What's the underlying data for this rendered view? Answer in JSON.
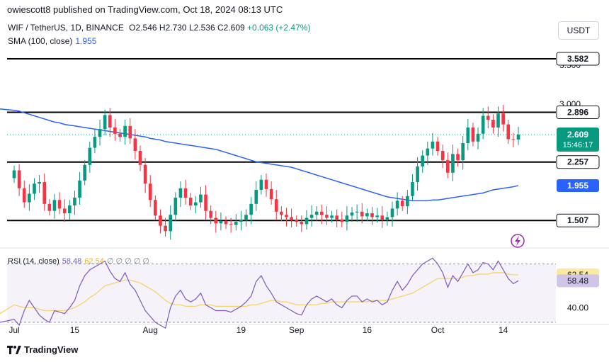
{
  "header": {
    "published": "owiescott8 published on TradingView.com, Oct 18, 2024 08:13 UTC",
    "symbol": "WIF / TetherUS, 1D, BINANCE",
    "open_label": "O",
    "open": "2.546",
    "high_label": "H",
    "high": "2.730",
    "low_label": "L",
    "low": "2.536",
    "close_label": "C",
    "close": "2.609",
    "change": "+0.063 (+2.47%)",
    "sma_label": "SMA (100, close)",
    "sma_value": "1.955",
    "currency": "USDT"
  },
  "rsi": {
    "label": "RSI (14, close)",
    "value": "58.48",
    "ma_value": "62.54",
    "extras": "∅ ∅ ∅ ∅ ∅",
    "axis_label": "40.00"
  },
  "footer": {
    "brand": "TradingView"
  },
  "icons": {
    "logo": "tradingview-logo-icon",
    "flash": "lightning-icon"
  },
  "colors": {
    "up": "#089981",
    "down": "#f23645",
    "sma": "#2962ff",
    "rsi": "#7e57c2",
    "rsi_ma": "#f5d36b",
    "level": "#000000"
  },
  "chart_data": {
    "type": "candlestick",
    "title": "WIF / TetherUS, 1D, BINANCE",
    "price_range": [
      1.2,
      3.7
    ],
    "x_ticks": [
      {
        "label": "Jul",
        "index": 0
      },
      {
        "label": "15",
        "index": 12
      },
      {
        "label": "Aug",
        "index": 27
      },
      {
        "label": "19",
        "index": 45
      },
      {
        "label": "Sep",
        "index": 56
      },
      {
        "label": "16",
        "index": 70
      },
      {
        "label": "Oct",
        "index": 84
      },
      {
        "label": "14",
        "index": 97
      }
    ],
    "y_ticks_faded": [
      "3.500",
      "3.000"
    ],
    "levels": [
      {
        "value": 3.582,
        "label": "3.582"
      },
      {
        "value": 2.896,
        "label": "2.896"
      },
      {
        "value": 2.257,
        "label": "2.257"
      },
      {
        "value": 1.507,
        "label": "1.507"
      }
    ],
    "current_price": {
      "value": 2.609,
      "label": "2.609",
      "countdown": "15:46:17"
    },
    "sma_label": {
      "value": 1.955,
      "label": "1.955"
    },
    "closes": [
      2.15,
      1.92,
      1.74,
      1.85,
      1.98,
      2.0,
      1.72,
      1.63,
      1.77,
      1.66,
      1.6,
      1.7,
      1.8,
      2.02,
      2.22,
      2.44,
      2.58,
      2.68,
      2.86,
      2.7,
      2.62,
      2.58,
      2.72,
      2.56,
      2.4,
      2.22,
      1.98,
      1.77,
      1.57,
      1.44,
      1.37,
      1.58,
      1.8,
      1.92,
      1.8,
      1.7,
      1.74,
      1.84,
      1.63,
      1.54,
      1.47,
      1.5,
      1.46,
      1.45,
      1.49,
      1.51,
      1.58,
      1.72,
      1.9,
      2.03,
      1.91,
      1.78,
      1.62,
      1.58,
      1.55,
      1.51,
      1.49,
      1.46,
      1.54,
      1.58,
      1.62,
      1.58,
      1.54,
      1.57,
      1.52,
      1.49,
      1.57,
      1.61,
      1.62,
      1.56,
      1.6,
      1.55,
      1.57,
      1.52,
      1.55,
      1.66,
      1.76,
      1.69,
      1.82,
      2.0,
      2.2,
      2.34,
      2.43,
      2.52,
      2.4,
      2.28,
      2.12,
      2.36,
      2.28,
      2.5,
      2.7,
      2.52,
      2.62,
      2.85,
      2.8,
      2.7,
      2.88,
      2.74,
      2.55,
      2.546,
      2.609
    ],
    "opens": [
      2.05,
      2.15,
      1.92,
      1.74,
      1.85,
      1.98,
      2.0,
      1.72,
      1.63,
      1.77,
      1.66,
      1.6,
      1.7,
      1.8,
      2.02,
      2.22,
      2.44,
      2.58,
      2.68,
      2.86,
      2.7,
      2.62,
      2.58,
      2.72,
      2.56,
      2.4,
      2.22,
      1.98,
      1.77,
      1.57,
      1.44,
      1.37,
      1.58,
      1.8,
      1.92,
      1.8,
      1.7,
      1.74,
      1.84,
      1.63,
      1.54,
      1.47,
      1.5,
      1.46,
      1.45,
      1.49,
      1.51,
      1.58,
      1.72,
      1.9,
      2.03,
      1.91,
      1.78,
      1.62,
      1.58,
      1.55,
      1.51,
      1.49,
      1.46,
      1.54,
      1.58,
      1.62,
      1.58,
      1.54,
      1.57,
      1.52,
      1.49,
      1.57,
      1.61,
      1.62,
      1.56,
      1.6,
      1.55,
      1.57,
      1.52,
      1.55,
      1.66,
      1.76,
      1.69,
      1.82,
      2.0,
      2.2,
      2.34,
      2.43,
      2.52,
      2.4,
      2.28,
      2.12,
      2.36,
      2.28,
      2.5,
      2.7,
      2.52,
      2.62,
      2.85,
      2.8,
      2.7,
      2.88,
      2.74,
      2.55,
      2.546
    ],
    "sma": [
      2.92,
      2.91,
      2.89,
      2.87,
      2.85,
      2.83,
      2.81,
      2.79,
      2.77,
      2.76,
      2.74,
      2.73,
      2.72,
      2.71,
      2.7,
      2.69,
      2.68,
      2.67,
      2.66,
      2.65,
      2.64,
      2.63,
      2.62,
      2.61,
      2.6,
      2.59,
      2.58,
      2.56,
      2.55,
      2.54,
      2.52,
      2.51,
      2.5,
      2.49,
      2.48,
      2.47,
      2.46,
      2.45,
      2.44,
      2.43,
      2.42,
      2.4,
      2.38,
      2.36,
      2.34,
      2.32,
      2.3,
      2.28,
      2.26,
      2.25,
      2.24,
      2.23,
      2.22,
      2.21,
      2.2,
      2.19,
      2.17,
      2.15,
      2.13,
      2.11,
      2.09,
      2.07,
      2.05,
      2.03,
      2.01,
      1.99,
      1.97,
      1.95,
      1.93,
      1.91,
      1.89,
      1.87,
      1.85,
      1.83,
      1.81,
      1.8,
      1.79,
      1.78,
      1.77,
      1.76,
      1.76,
      1.76,
      1.76,
      1.77,
      1.77,
      1.78,
      1.79,
      1.8,
      1.81,
      1.82,
      1.83,
      1.84,
      1.85,
      1.86,
      1.88,
      1.9,
      1.91,
      1.92,
      1.93,
      1.94,
      1.955
    ],
    "rsi": [
      32,
      28,
      38,
      45,
      40,
      35,
      32,
      30,
      38,
      37,
      36,
      40,
      45,
      55,
      62,
      66,
      68,
      70,
      72,
      65,
      60,
      58,
      64,
      56,
      52,
      45,
      38,
      34,
      30,
      28,
      26,
      40,
      48,
      52,
      46,
      44,
      46,
      50,
      42,
      40,
      38,
      38,
      38,
      37,
      39,
      41,
      44,
      48,
      58,
      62,
      55,
      50,
      44,
      42,
      40,
      38,
      36,
      35,
      42,
      46,
      48,
      46,
      44,
      46,
      42,
      40,
      45,
      48,
      48,
      44,
      46,
      44,
      45,
      42,
      44,
      52,
      58,
      52,
      56,
      62,
      66,
      70,
      72,
      74,
      70,
      64,
      54,
      62,
      58,
      64,
      70,
      64,
      66,
      71,
      70,
      66,
      72,
      66,
      60,
      56.5,
      58.48
    ],
    "rsi_ma": [
      42,
      41,
      40,
      40,
      40,
      39,
      38,
      38,
      38,
      38,
      38,
      39,
      40,
      42,
      44,
      47,
      49,
      52,
      55,
      56,
      57,
      58,
      59,
      59,
      58,
      57,
      55,
      53,
      51,
      48,
      45,
      43,
      42,
      42,
      41,
      41,
      41,
      42,
      42,
      42,
      41,
      41,
      41,
      41,
      41,
      41,
      41,
      42,
      42,
      43,
      44,
      45,
      45,
      44,
      44,
      43,
      42,
      42,
      42,
      42,
      42,
      43,
      43,
      44,
      44,
      44,
      44,
      44,
      44,
      44,
      44,
      45,
      45,
      45,
      45,
      46,
      47,
      48,
      49,
      50,
      52,
      54,
      56,
      58,
      60,
      60,
      60,
      60,
      60,
      61,
      62,
      62,
      63,
      63,
      63,
      64,
      64,
      64,
      63,
      62.6,
      62.54
    ],
    "rsi_range": [
      30,
      80
    ]
  }
}
